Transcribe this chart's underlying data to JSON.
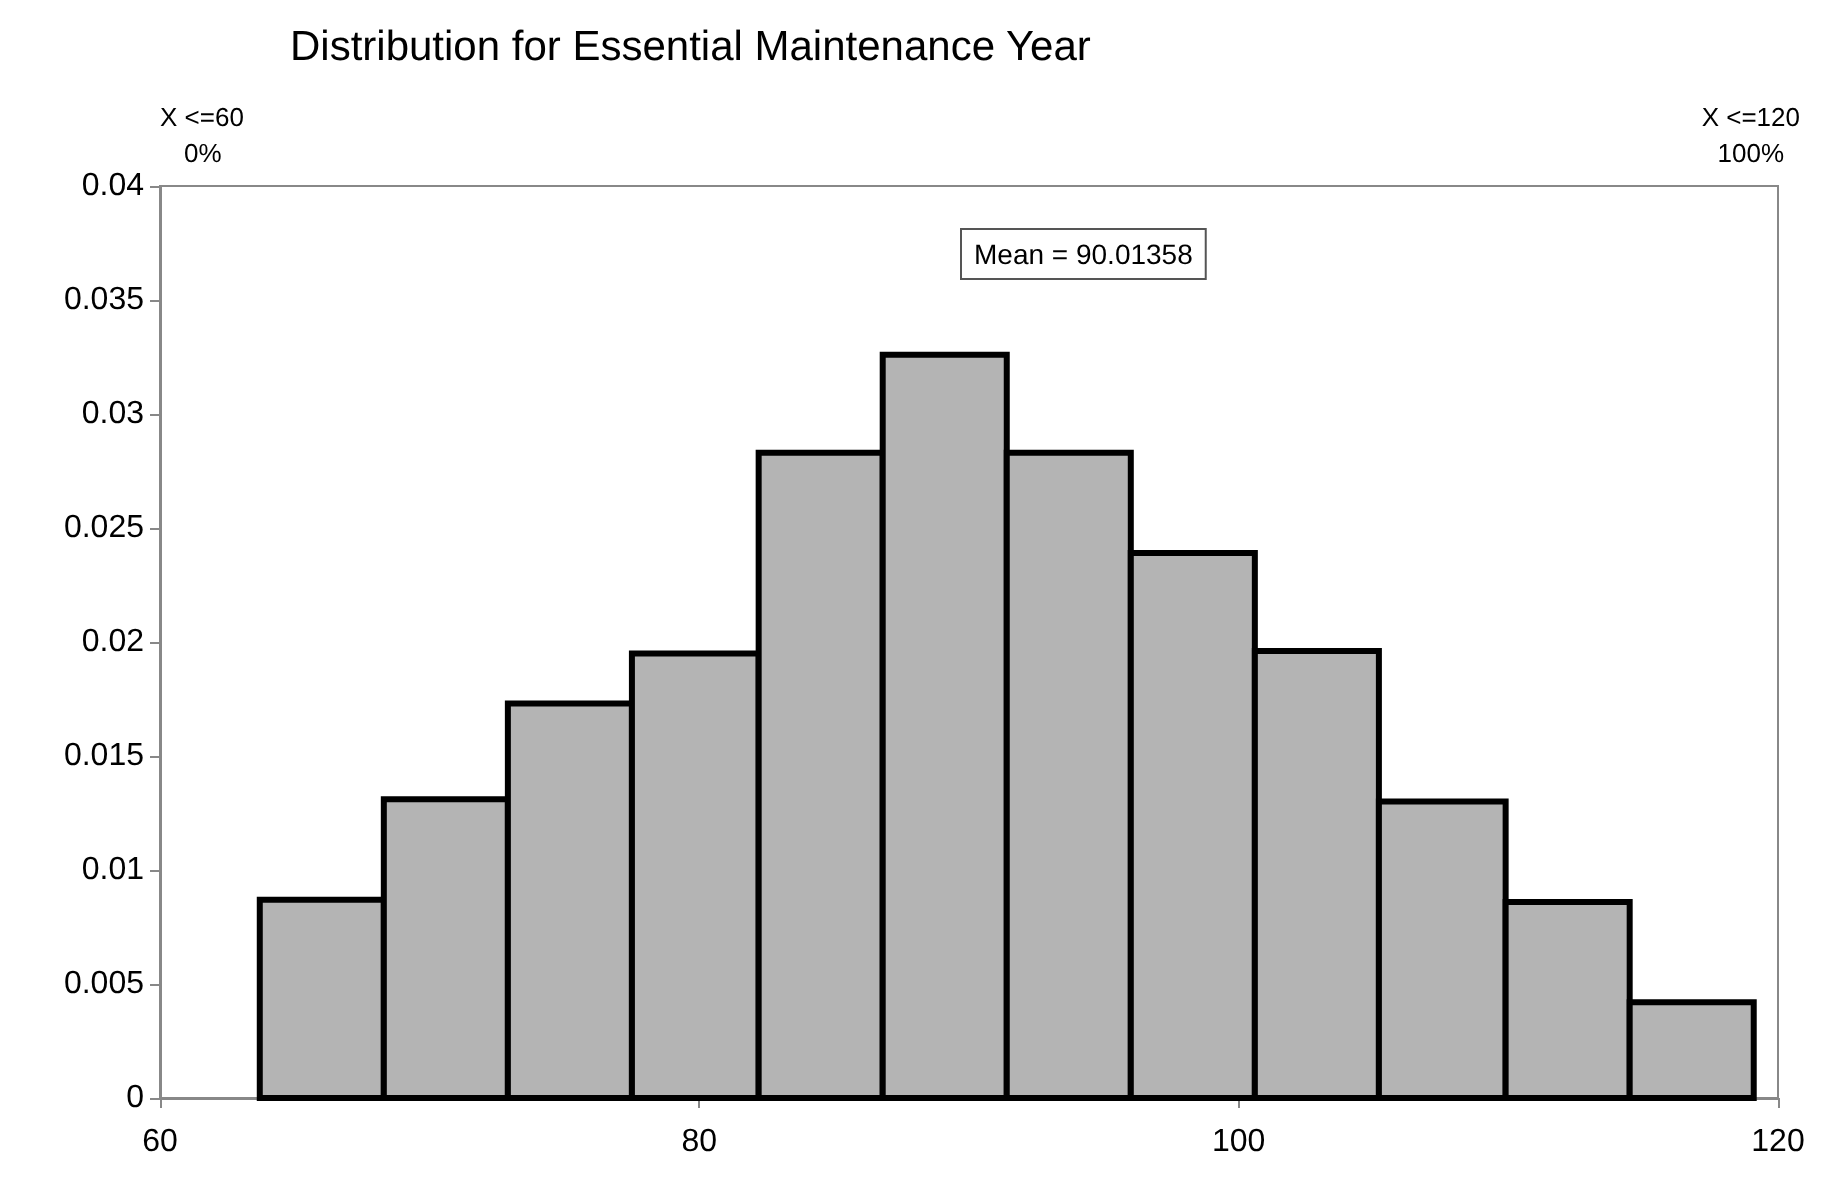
{
  "chart_data": {
    "type": "histogram",
    "title": "Distribution for Essential Maintenance Year",
    "bins": [
      63.7,
      68.3,
      72.9,
      77.5,
      82.2,
      86.8,
      91.4,
      96.0,
      100.6,
      105.2,
      109.9,
      114.5,
      119.1
    ],
    "values": [
      0.0087,
      0.0131,
      0.0173,
      0.0195,
      0.0283,
      0.0326,
      0.0283,
      0.0239,
      0.0196,
      0.013,
      0.0086,
      0.0042
    ],
    "color": "#b4b4b4",
    "xlim": [
      60,
      120
    ],
    "xticks": [
      60,
      80,
      100,
      120
    ],
    "ylim": [
      0,
      0.04
    ],
    "yticks": [
      0,
      0.005,
      0.01,
      0.015,
      0.02,
      0.025,
      0.03,
      0.035,
      0.04
    ],
    "grid": false,
    "annotations": [
      "X <=60",
      "0%",
      "X <=120",
      "100%",
      "Mean = 90.01358"
    ]
  }
}
